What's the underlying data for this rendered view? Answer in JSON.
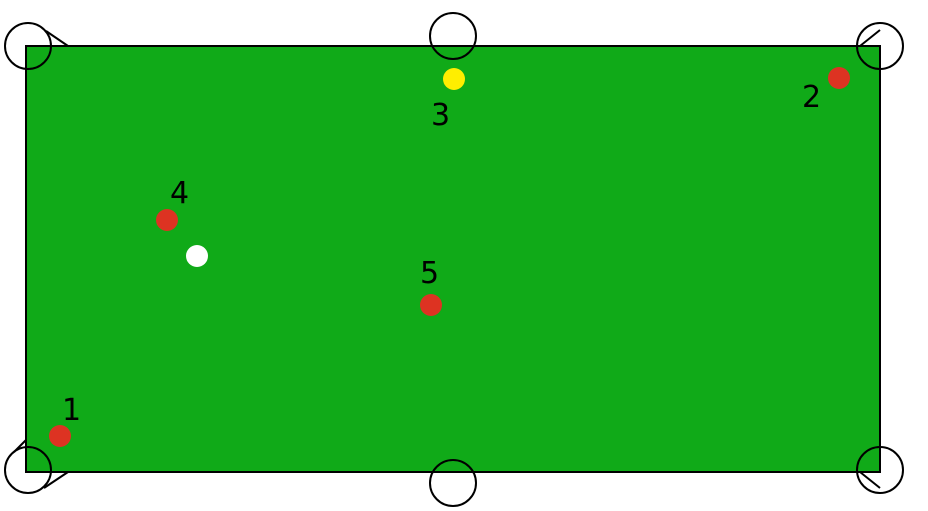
{
  "colors": {
    "background": "#ffffff",
    "felt": "#10aa18",
    "rail": "#000000",
    "pocket_fill": "#ffffff",
    "pocket_stroke": "#000000",
    "red_ball": "#dd3322",
    "yellow_ball": "#ffee00",
    "cue_ball": "#ffffff",
    "label": "#000000"
  },
  "pockets": [
    {
      "name": "top-left"
    },
    {
      "name": "top-middle"
    },
    {
      "name": "top-right"
    },
    {
      "name": "bottom-left"
    },
    {
      "name": "bottom-middle"
    },
    {
      "name": "bottom-right"
    }
  ],
  "balls": [
    {
      "label": "1",
      "color": "red"
    },
    {
      "label": "2",
      "color": "red"
    },
    {
      "label": "3",
      "color": "yellow"
    },
    {
      "label": "4",
      "color": "red"
    },
    {
      "label": "5",
      "color": "red"
    },
    {
      "label": "",
      "color": "white",
      "role": "cue-ball"
    }
  ]
}
